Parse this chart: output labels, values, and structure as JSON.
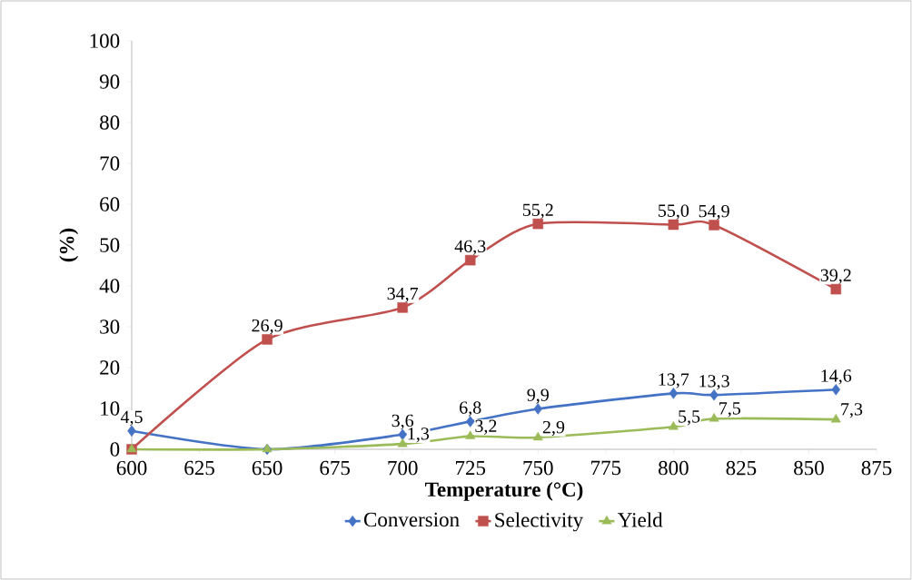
{
  "chart_data": {
    "type": "line",
    "xlabel": "Temperature (°C)",
    "ylabel": "(%)",
    "x": [
      600,
      650,
      700,
      725,
      750,
      800,
      815,
      860
    ],
    "xlim": [
      600,
      875
    ],
    "xticks": [
      600,
      625,
      650,
      675,
      700,
      725,
      750,
      775,
      800,
      825,
      850,
      875
    ],
    "ylim": [
      0,
      100
    ],
    "yticks": [
      0,
      10,
      20,
      30,
      40,
      50,
      60,
      70,
      80,
      90,
      100
    ],
    "legend": "bottom",
    "line_style": "solid",
    "series": [
      {
        "name": "Conversion",
        "color": "#4472c4",
        "marker": "diamond",
        "values": [
          4.5,
          0,
          3.6,
          6.8,
          9.9,
          13.7,
          13.3,
          14.6
        ],
        "value_labels": [
          "4,5",
          null,
          "3,6",
          "6,8",
          "9,9",
          "13,7",
          "13,3",
          "14,6"
        ]
      },
      {
        "name": "Selectivity",
        "color": "#c0504d",
        "marker": "square",
        "values": [
          0,
          26.9,
          34.7,
          46.3,
          55.2,
          55.0,
          54.9,
          39.2
        ],
        "value_labels": [
          null,
          "26,9",
          "34,7",
          "46,3",
          "55,2",
          "55,0",
          "54,9",
          "39,2"
        ]
      },
      {
        "name": "Yield",
        "color": "#9bbb59",
        "marker": "triangle",
        "values": [
          0,
          0,
          1.3,
          3.2,
          2.9,
          5.5,
          7.5,
          7.3
        ],
        "value_labels": [
          null,
          null,
          "1,3",
          "3,2",
          "2,9",
          "5,5",
          "7,5",
          "7,3"
        ]
      }
    ]
  }
}
